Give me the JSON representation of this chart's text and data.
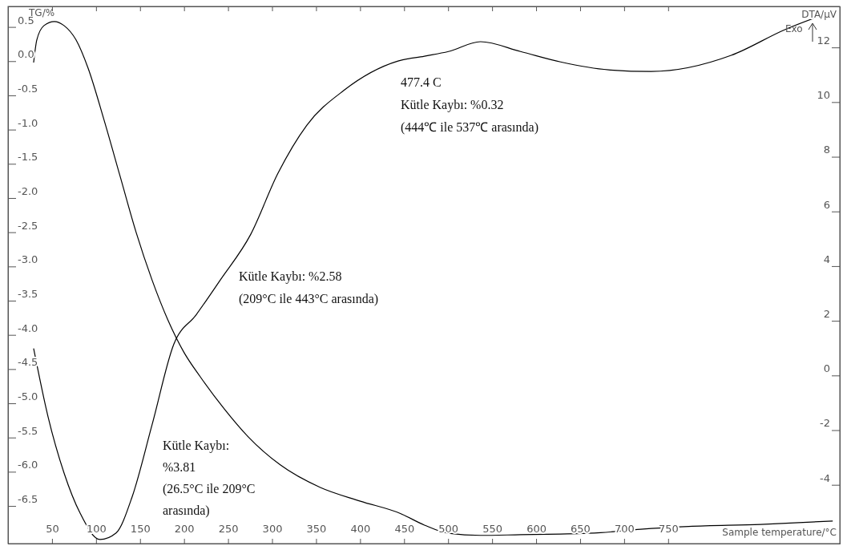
{
  "chart_data": {
    "type": "line",
    "xlabel": "Sample temperature/°C",
    "ylabel": "TG/%",
    "y2label": "DTA/µV",
    "xlim": [
      0,
      945
    ],
    "ylim": [
      -7.05,
      0.8
    ],
    "y2lim": [
      -6.15,
      13.5
    ],
    "xticks": [
      50,
      100,
      150,
      200,
      250,
      300,
      350,
      400,
      450,
      500,
      550,
      600,
      650,
      700,
      750
    ],
    "yticks": [
      {
        "value": 0.5,
        "label": "0.5"
      },
      {
        "value": 0,
        "label": "0.0"
      },
      {
        "value": -0.5,
        "label": "-0.5"
      },
      {
        "value": -1,
        "label": "-1.0"
      },
      {
        "value": -1.5,
        "label": "-1.5"
      },
      {
        "value": -2,
        "label": "-2.0"
      },
      {
        "value": -2.5,
        "label": "-2.5"
      },
      {
        "value": -3,
        "label": "-3.0"
      },
      {
        "value": -3.5,
        "label": "-3.5"
      },
      {
        "value": -4,
        "label": "-4.0"
      },
      {
        "value": -4.5,
        "label": "-4.5"
      },
      {
        "value": -5,
        "label": "-5.0"
      },
      {
        "value": -5.5,
        "label": "-5.5"
      },
      {
        "value": -6,
        "label": "-6.0"
      },
      {
        "value": -6.5,
        "label": "-6.5"
      }
    ],
    "y2ticks": [
      12,
      10,
      8,
      6,
      4,
      2,
      0,
      -2,
      -4
    ],
    "series": [
      {
        "color": "#000000",
        "x": [
          29.1,
          32.7,
          40.9,
          52.7,
          63.6,
          77.3,
          90.9,
          109.1,
          127.3,
          145.5,
          163.7,
          181.9,
          200.1,
          218.3,
          245.6,
          272.9,
          309.3,
          354.8,
          400.3,
          445.8,
          473.1,
          500.4,
          536.8,
          582.3,
          627.8,
          673.3,
          718.8,
          773.4,
          855,
          937
        ],
        "values": [
          -0.02,
          0.31,
          0.52,
          0.58,
          0.52,
          0.31,
          -0.1,
          -0.86,
          -1.68,
          -2.5,
          -3.2,
          -3.79,
          -4.26,
          -4.61,
          -5.08,
          -5.49,
          -5.9,
          -6.23,
          -6.43,
          -6.61,
          -6.78,
          -6.9,
          -6.93,
          -6.92,
          -6.91,
          -6.89,
          -6.84,
          -6.8,
          -6.77,
          -6.72
        ]
      },
      {
        "color": "#000000",
        "axis": "y2",
        "x": [
          29.1,
          45.5,
          63.6,
          81.8,
          104.6,
          122.8,
          141,
          163.7,
          188.3,
          213.8,
          241.1,
          275.7,
          306.6,
          339.4,
          382.1,
          443.1,
          473.1,
          500.4,
          536.8,
          582.3,
          627.8,
          682.4,
          730.6,
          821.6,
          882.6,
          937.2
        ],
        "values": [
          0.99,
          -1.51,
          -3.56,
          -5.03,
          -6,
          -5.76,
          -4.44,
          -1.8,
          1.14,
          2.22,
          3.49,
          5.16,
          7.39,
          9.15,
          10.44,
          11.5,
          11.68,
          11.85,
          12.21,
          11.85,
          11.47,
          11.18,
          11.12,
          11.71,
          12.65,
          13.32
        ]
      }
    ],
    "annotations": [
      "477.4 C\nKütle Kaybı: %0.32\n(444℃ ile 537℃ arasında)",
      "Kütle Kaybı: %2.58\n(209°C ile 443°C arasında)",
      "Kütle Kaybı:\n%3.81\n(26.5°C ile 209°C\narasında)",
      "Exo"
    ],
    "marker": "none",
    "line_style": "solid",
    "grid": false
  }
}
